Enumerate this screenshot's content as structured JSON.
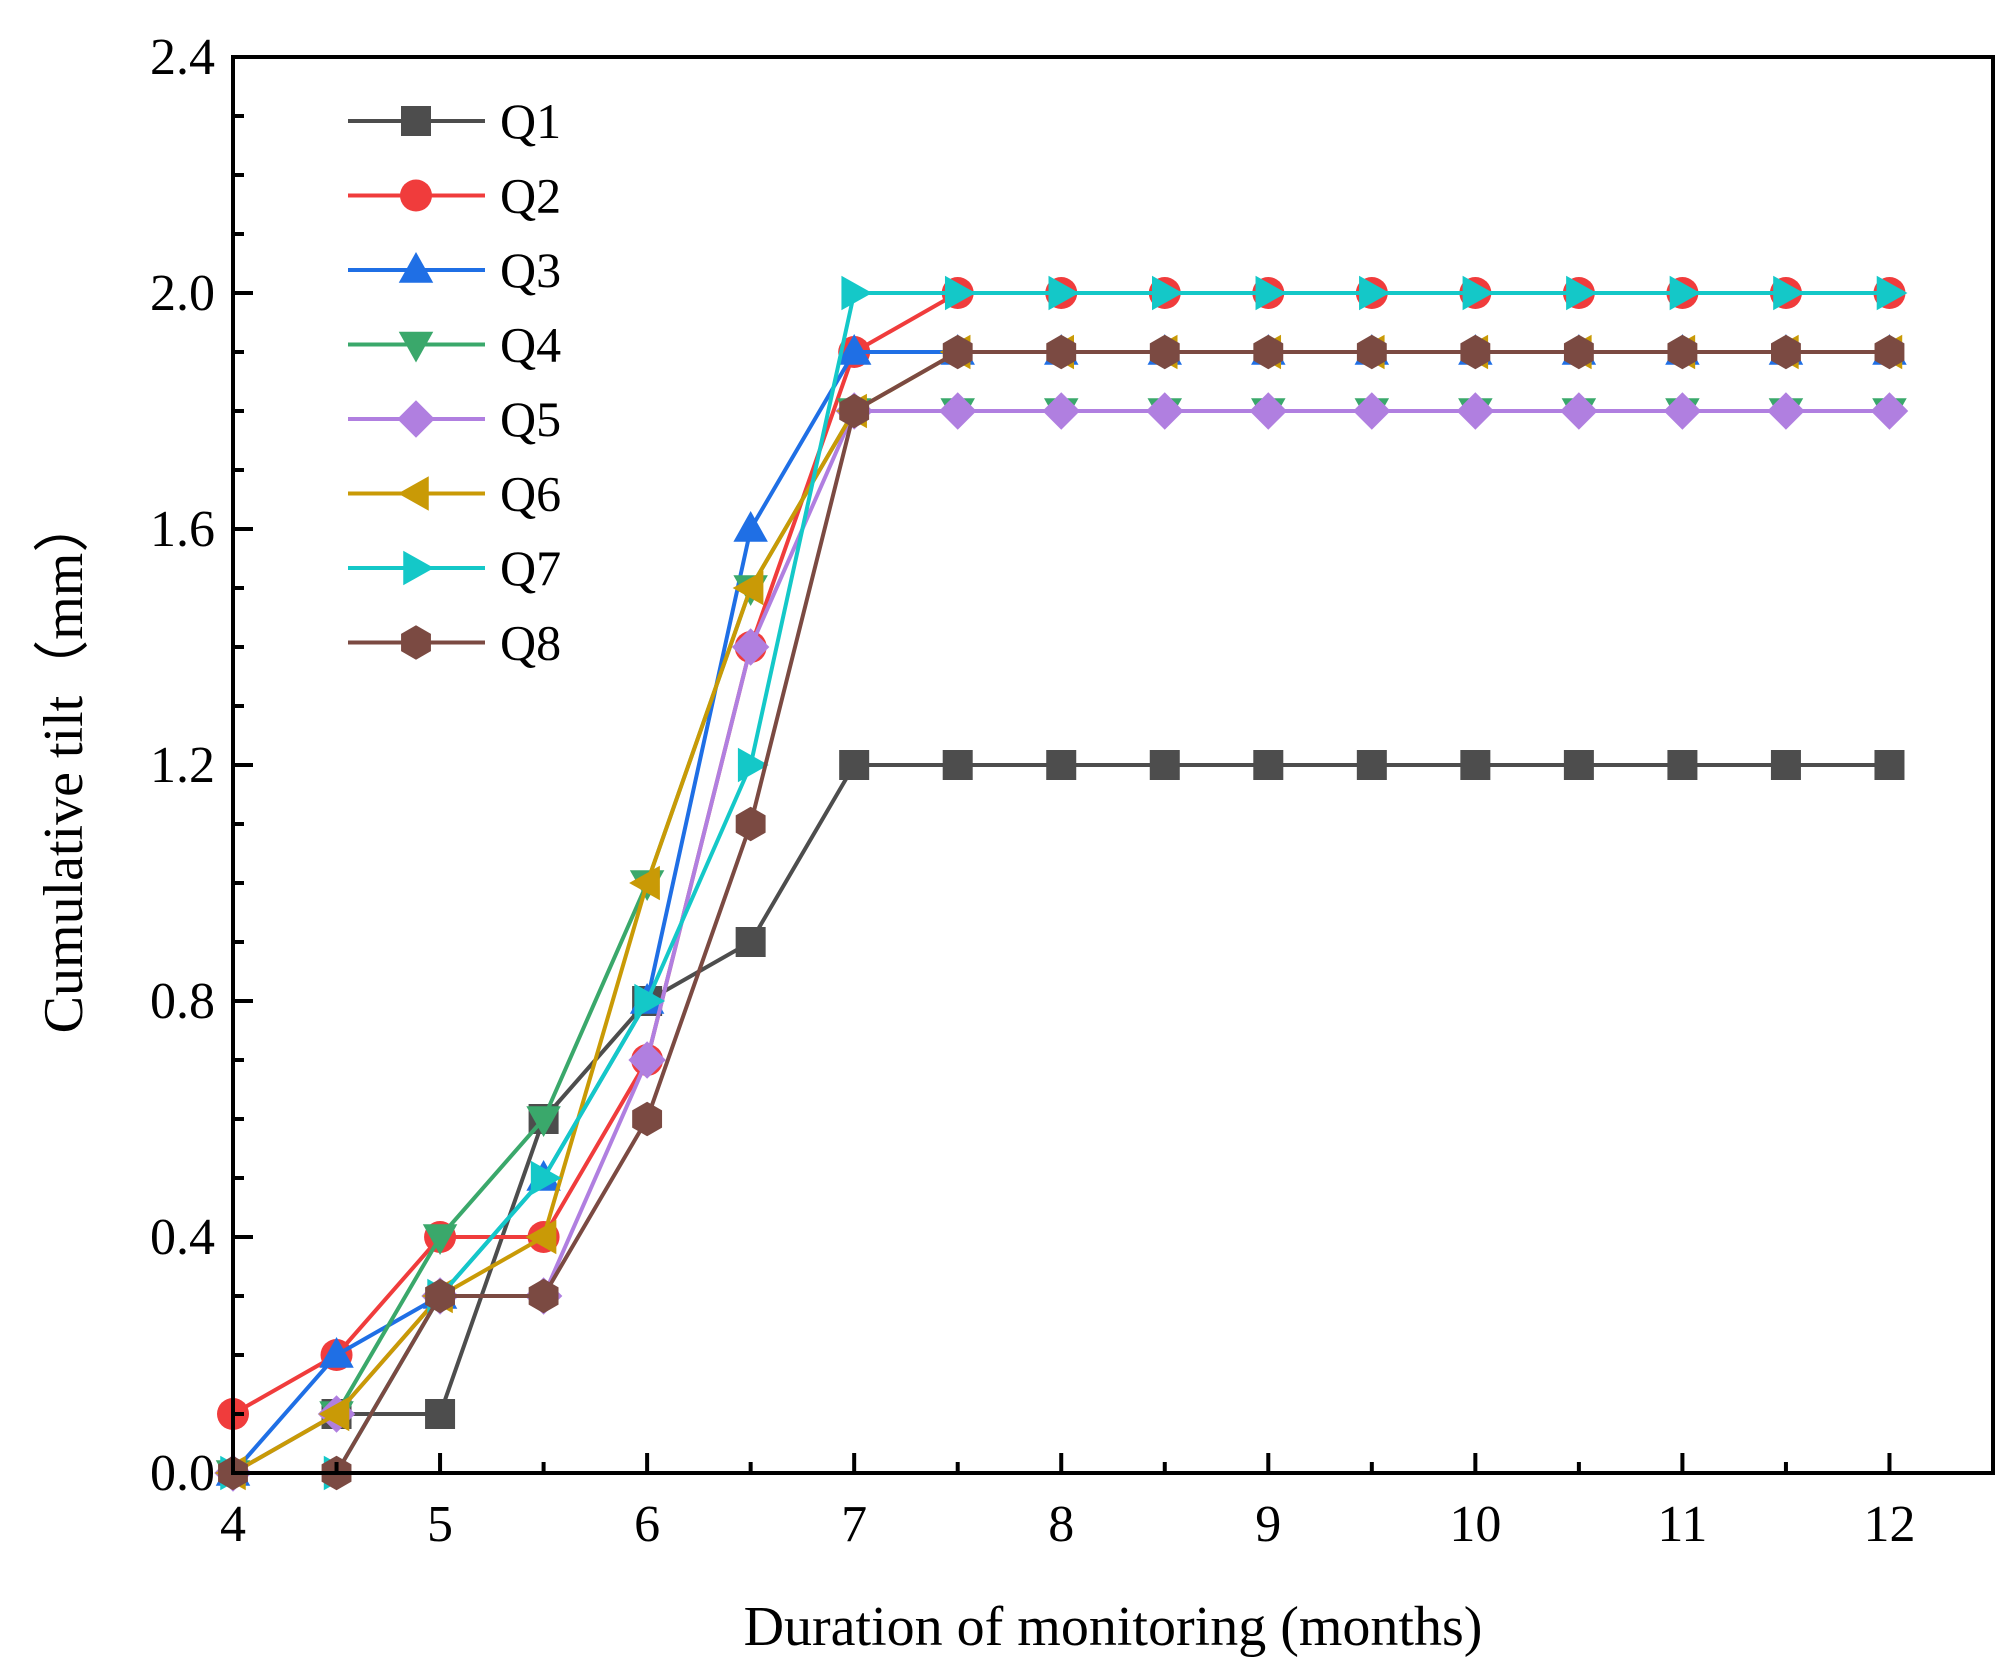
{
  "chart_data": {
    "type": "line",
    "title": "",
    "xlabel": "Duration of monitoring (months)",
    "ylabel": "Cumulative tilt（mm）",
    "xlim": [
      4,
      12.5
    ],
    "ylim": [
      0,
      2.4
    ],
    "xticks": [
      4,
      5,
      6,
      7,
      8,
      9,
      10,
      11,
      12
    ],
    "xtick_labels": [
      "4",
      "5",
      "6",
      "7",
      "8",
      "9",
      "10",
      "11",
      "12"
    ],
    "yticks": [
      0,
      0.4,
      0.8,
      1.2,
      1.6,
      2.0,
      2.4
    ],
    "ytick_labels": [
      "0.0",
      "0.4",
      "0.8",
      "1.2",
      "1.6",
      "2.0",
      "2.4"
    ],
    "grid": false,
    "legend_position": "top-left",
    "x": [
      4,
      4.5,
      5,
      5.5,
      6,
      6.5,
      7,
      7.5,
      8,
      8.5,
      9,
      9.5,
      10,
      10.5,
      11,
      11.5,
      12
    ],
    "series": [
      {
        "name": "Q1",
        "color": "#4d4d4d",
        "marker": "square",
        "values": [
          null,
          0.1,
          0.1,
          0.6,
          0.8,
          0.9,
          1.2,
          1.2,
          1.2,
          1.2,
          1.2,
          1.2,
          1.2,
          1.2,
          1.2,
          1.2,
          1.2
        ]
      },
      {
        "name": "Q2",
        "color": "#f03c3c",
        "marker": "circle",
        "values": [
          0.1,
          0.2,
          0.4,
          0.4,
          0.7,
          1.4,
          1.9,
          2.0,
          2.0,
          2.0,
          2.0,
          2.0,
          2.0,
          2.0,
          2.0,
          2.0,
          2.0
        ]
      },
      {
        "name": "Q3",
        "color": "#1f6fe5",
        "marker": "triangle-up",
        "values": [
          0.0,
          0.2,
          0.3,
          0.5,
          0.8,
          1.6,
          1.9,
          1.9,
          1.9,
          1.9,
          1.9,
          1.9,
          1.9,
          1.9,
          1.9,
          1.9,
          1.9
        ]
      },
      {
        "name": "Q4",
        "color": "#3aa86b",
        "marker": "triangle-down",
        "values": [
          0.0,
          0.1,
          0.4,
          0.6,
          1.0,
          1.5,
          1.8,
          1.8,
          1.8,
          1.8,
          1.8,
          1.8,
          1.8,
          1.8,
          1.8,
          1.8,
          1.8
        ]
      },
      {
        "name": "Q5",
        "color": "#b07fe0",
        "marker": "diamond",
        "values": [
          0.0,
          0.1,
          0.3,
          0.3,
          0.7,
          1.4,
          1.8,
          1.8,
          1.8,
          1.8,
          1.8,
          1.8,
          1.8,
          1.8,
          1.8,
          1.8,
          1.8
        ]
      },
      {
        "name": "Q6",
        "color": "#c99a06",
        "marker": "triangle-left",
        "values": [
          0.0,
          0.1,
          0.3,
          0.4,
          1.0,
          1.5,
          1.8,
          1.9,
          1.9,
          1.9,
          1.9,
          1.9,
          1.9,
          1.9,
          1.9,
          1.9,
          1.9
        ]
      },
      {
        "name": "Q7",
        "color": "#14c8c8",
        "marker": "triangle-right",
        "values": [
          0.0,
          0.0,
          0.3,
          0.5,
          0.8,
          1.2,
          2.0,
          2.0,
          2.0,
          2.0,
          2.0,
          2.0,
          2.0,
          2.0,
          2.0,
          2.0,
          2.0
        ]
      },
      {
        "name": "Q8",
        "color": "#7b4a42",
        "marker": "hexagon",
        "values": [
          0.0,
          0.0,
          0.3,
          0.3,
          0.6,
          1.1,
          1.8,
          1.9,
          1.9,
          1.9,
          1.9,
          1.9,
          1.9,
          1.9,
          1.9,
          1.9,
          1.9
        ]
      }
    ]
  }
}
